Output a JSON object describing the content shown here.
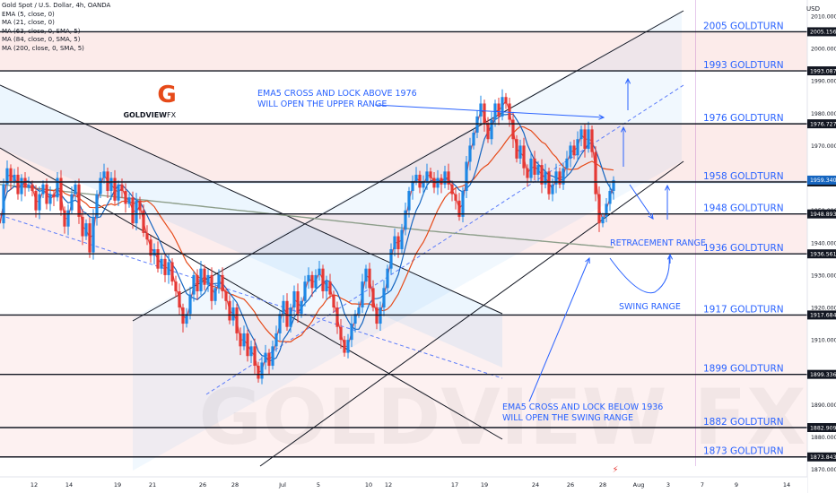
{
  "header": {
    "symbol": "Gold Spot / U.S. Dollar, 4h, OANDA",
    "indicators": [
      "EMA (5, close, 0)",
      "MA (21, close, 0)",
      "MA (63, close, 0, SMA, 5)",
      "MA (84, close, 0, SMA, 5)",
      "MA (200, close, 0, SMA, 5)"
    ]
  },
  "currency": "USD",
  "logo": {
    "text_bold": "GOLDVIEW",
    "text_light": " FX",
    "glyph": "G"
  },
  "watermark": "GOLDVIEW FX",
  "colors": {
    "candle_up": "#1e88e5",
    "candle_down": "#e53935",
    "ema5": "#e53935",
    "ma21": "#1565c0",
    "ma63": "#e64a19",
    "ma200": "#8d9e8a",
    "level_line": "#131722",
    "level_label": "#2962ff",
    "annotation": "#2962ff",
    "axis_label_bg": "#131722",
    "last_price_bg": "#1565c0"
  },
  "chart_data": {
    "type": "candlestick",
    "title": "Gold Spot / U.S. Dollar, 4h, OANDA",
    "ylim": [
      1866,
      2018
    ],
    "y_axis_ticks": [
      "1870.000",
      "1880.000",
      "1890.000",
      "1900.000",
      "1910.000",
      "1920.000",
      "1930.000",
      "1940.000",
      "1950.000",
      "1960.000",
      "1970.000",
      "1980.000",
      "1990.000",
      "2000.000",
      "2010.000"
    ],
    "x_axis_ticks": [
      "12",
      "14",
      "19",
      "21",
      "26",
      "28",
      "Jul",
      "5",
      "10",
      "12",
      "17",
      "19",
      "24",
      "26",
      "28",
      "Aug",
      "3",
      "7",
      "9",
      "14"
    ],
    "levels": [
      {
        "value": 2005.156,
        "label": "2005 GOLDTURN",
        "axis": "2005.156"
      },
      {
        "value": 1993.087,
        "label": "1993 GOLDTURN",
        "axis": "1993.087"
      },
      {
        "value": 1976.727,
        "label": "1976 GOLDTURN",
        "axis": "1976.727"
      },
      {
        "value": 1958.767,
        "label": "1958 GOLDTURN",
        "axis": "1958.767"
      },
      {
        "value": 1948.893,
        "label": "1948 GOLDTURN",
        "axis": "1948.893"
      },
      {
        "value": 1936.561,
        "label": "1936 GOLDTURN",
        "axis": "1936.561"
      },
      {
        "value": 1917.684,
        "label": "1917 GOLDTURN",
        "axis": "1917.684"
      },
      {
        "value": 1899.336,
        "label": "1899 GOLDTURN",
        "axis": "1899.336"
      },
      {
        "value": 1882.909,
        "label": "1882 GOLDTURN",
        "axis": "1882.909"
      },
      {
        "value": 1873.843,
        "label": "1873 GOLDTURN",
        "axis": "1873.843"
      }
    ],
    "last_price": "1959.340",
    "annotations": [
      {
        "lines": [
          "EMA5 CROSS AND LOCK ABOVE 1976",
          "WILL OPEN THE UPPER RANGE"
        ]
      },
      {
        "lines": [
          "EMA5 CROSS AND LOCK BELOW 1936",
          "WILL OPEN THE SWING RANGE"
        ]
      },
      {
        "lines": [
          "RETRACEMENT RANGE"
        ]
      },
      {
        "lines": [
          "SWING RANGE"
        ]
      }
    ],
    "price_path": [
      [
        0,
        1946
      ],
      [
        4,
        1958
      ],
      [
        8,
        1963
      ],
      [
        12,
        1959
      ],
      [
        16,
        1961
      ],
      [
        20,
        1955
      ],
      [
        24,
        1960
      ],
      [
        28,
        1957
      ],
      [
        32,
        1958
      ],
      [
        36,
        1956
      ],
      [
        40,
        1950
      ],
      [
        44,
        1955
      ],
      [
        48,
        1958
      ],
      [
        52,
        1952
      ],
      [
        56,
        1955
      ],
      [
        60,
        1954
      ],
      [
        64,
        1960
      ],
      [
        68,
        1950
      ],
      [
        72,
        1945
      ],
      [
        76,
        1950
      ],
      [
        80,
        1955
      ],
      [
        84,
        1958
      ],
      [
        88,
        1948
      ],
      [
        92,
        1942
      ],
      [
        96,
        1946
      ],
      [
        100,
        1937
      ],
      [
        104,
        1948
      ],
      [
        108,
        1955
      ],
      [
        112,
        1960
      ],
      [
        116,
        1962
      ],
      [
        120,
        1956
      ],
      [
        124,
        1960
      ],
      [
        128,
        1953
      ],
      [
        132,
        1958
      ],
      [
        136,
        1956
      ],
      [
        140,
        1952
      ],
      [
        144,
        1954
      ],
      [
        148,
        1946
      ],
      [
        152,
        1953
      ],
      [
        156,
        1950
      ],
      [
        160,
        1943
      ],
      [
        164,
        1941
      ],
      [
        168,
        1936
      ],
      [
        172,
        1938
      ],
      [
        176,
        1932
      ],
      [
        180,
        1935
      ],
      [
        184,
        1930
      ],
      [
        188,
        1934
      ],
      [
        192,
        1928
      ],
      [
        196,
        1925
      ],
      [
        200,
        1920
      ],
      [
        204,
        1915
      ],
      [
        208,
        1918
      ],
      [
        212,
        1924
      ],
      [
        216,
        1930
      ],
      [
        220,
        1925
      ],
      [
        224,
        1932
      ],
      [
        228,
        1927
      ],
      [
        232,
        1930
      ],
      [
        236,
        1922
      ],
      [
        240,
        1926
      ],
      [
        244,
        1930
      ],
      [
        248,
        1925
      ],
      [
        252,
        1922
      ],
      [
        256,
        1916
      ],
      [
        260,
        1920
      ],
      [
        264,
        1912
      ],
      [
        268,
        1908
      ],
      [
        272,
        1912
      ],
      [
        276,
        1905
      ],
      [
        280,
        1908
      ],
      [
        284,
        1902
      ],
      [
        288,
        1898
      ],
      [
        292,
        1903
      ],
      [
        296,
        1906
      ],
      [
        300,
        1902
      ],
      [
        304,
        1908
      ],
      [
        308,
        1912
      ],
      [
        312,
        1918
      ],
      [
        316,
        1922
      ],
      [
        320,
        1914
      ],
      [
        324,
        1920
      ],
      [
        328,
        1925
      ],
      [
        332,
        1918
      ],
      [
        336,
        1922
      ],
      [
        340,
        1928
      ],
      [
        344,
        1930
      ],
      [
        348,
        1926
      ],
      [
        352,
        1930
      ],
      [
        356,
        1932
      ],
      [
        360,
        1925
      ],
      [
        364,
        1928
      ],
      [
        368,
        1924
      ],
      [
        372,
        1920
      ],
      [
        376,
        1914
      ],
      [
        380,
        1910
      ],
      [
        384,
        1906
      ],
      [
        388,
        1910
      ],
      [
        392,
        1915
      ],
      [
        396,
        1918
      ],
      [
        400,
        1920
      ],
      [
        404,
        1928
      ],
      [
        408,
        1932
      ],
      [
        412,
        1926
      ],
      [
        416,
        1920
      ],
      [
        420,
        1915
      ],
      [
        424,
        1920
      ],
      [
        428,
        1926
      ],
      [
        432,
        1932
      ],
      [
        436,
        1938
      ],
      [
        440,
        1942
      ],
      [
        444,
        1938
      ],
      [
        448,
        1944
      ],
      [
        452,
        1950
      ],
      [
        456,
        1956
      ],
      [
        460,
        1959
      ],
      [
        464,
        1961
      ],
      [
        468,
        1957
      ],
      [
        472,
        1959
      ],
      [
        476,
        1962
      ],
      [
        480,
        1960
      ],
      [
        484,
        1957
      ],
      [
        488,
        1960
      ],
      [
        492,
        1958
      ],
      [
        496,
        1962
      ],
      [
        500,
        1958
      ],
      [
        504,
        1955
      ],
      [
        508,
        1953
      ],
      [
        512,
        1948
      ],
      [
        516,
        1956
      ],
      [
        520,
        1965
      ],
      [
        524,
        1970
      ],
      [
        528,
        1974
      ],
      [
        532,
        1979
      ],
      [
        536,
        1983
      ],
      [
        540,
        1977
      ],
      [
        544,
        1972
      ],
      [
        548,
        1978
      ],
      [
        552,
        1983
      ],
      [
        556,
        1979
      ],
      [
        560,
        1985
      ],
      [
        564,
        1983
      ],
      [
        568,
        1978
      ],
      [
        572,
        1972
      ],
      [
        576,
        1966
      ],
      [
        580,
        1970
      ],
      [
        584,
        1963
      ],
      [
        588,
        1960
      ],
      [
        592,
        1966
      ],
      [
        596,
        1961
      ],
      [
        600,
        1964
      ],
      [
        604,
        1958
      ],
      [
        608,
        1962
      ],
      [
        612,
        1955
      ],
      [
        616,
        1958
      ],
      [
        620,
        1962
      ],
      [
        624,
        1958
      ],
      [
        628,
        1963
      ],
      [
        632,
        1966
      ],
      [
        636,
        1970
      ],
      [
        640,
        1967
      ],
      [
        644,
        1972
      ],
      [
        648,
        1975
      ],
      [
        652,
        1969
      ],
      [
        656,
        1975
      ],
      [
        660,
        1968
      ],
      [
        664,
        1955
      ],
      [
        668,
        1946
      ],
      [
        672,
        1948
      ],
      [
        676,
        1952
      ],
      [
        680,
        1956
      ],
      [
        684,
        1959.34
      ]
    ]
  }
}
